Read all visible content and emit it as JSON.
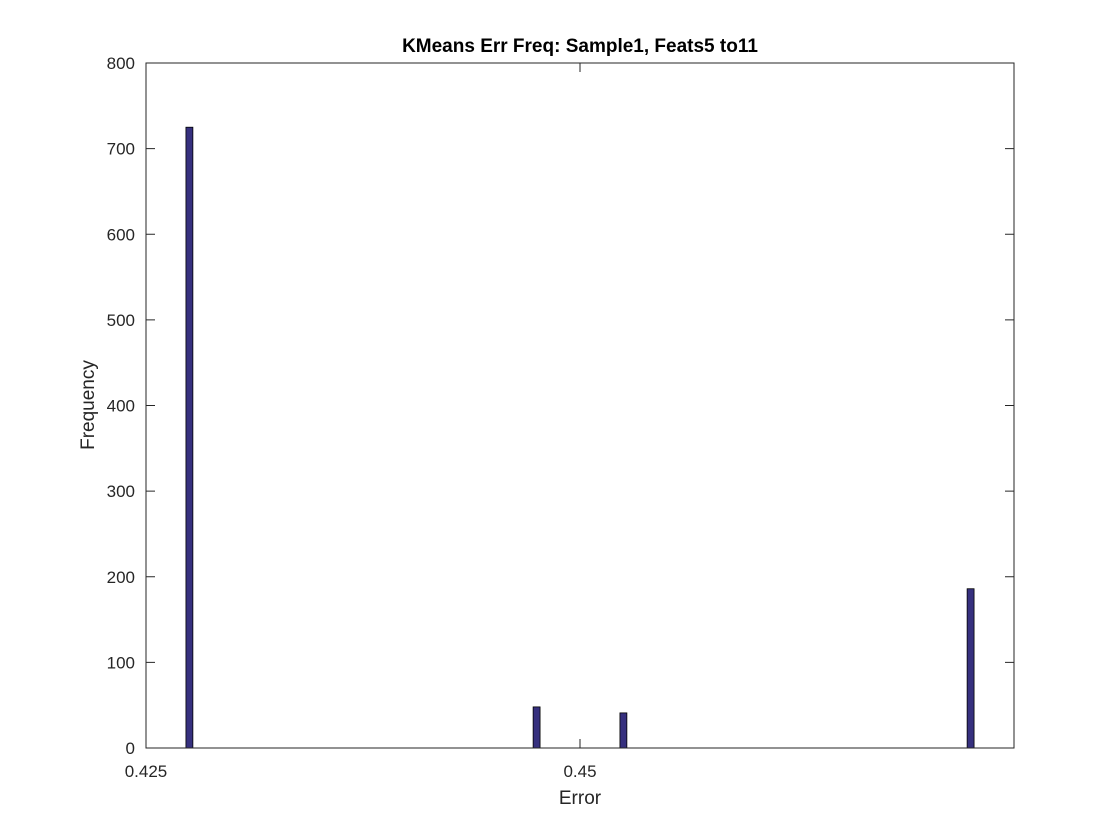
{
  "chart_data": {
    "type": "bar",
    "title": "KMeans Err Freq: Sample1, Feats5 to11",
    "xlabel": "Error",
    "ylabel": "Frequency",
    "xlim": [
      0.425,
      0.475
    ],
    "ylim": [
      0,
      800
    ],
    "xticks": [
      0.425,
      0.45
    ],
    "xtick_labels": [
      "0.425",
      "0.45"
    ],
    "yticks": [
      0,
      100,
      200,
      300,
      400,
      500,
      600,
      700,
      800
    ],
    "ytick_labels": [
      "0",
      "100",
      "200",
      "300",
      "400",
      "500",
      "600",
      "700",
      "800"
    ],
    "bar_width": 0.0004,
    "x": [
      0.4275,
      0.4475,
      0.4525,
      0.4725
    ],
    "values": [
      725,
      48,
      41,
      186
    ],
    "bar_color": "#36307e",
    "grid": false
  }
}
